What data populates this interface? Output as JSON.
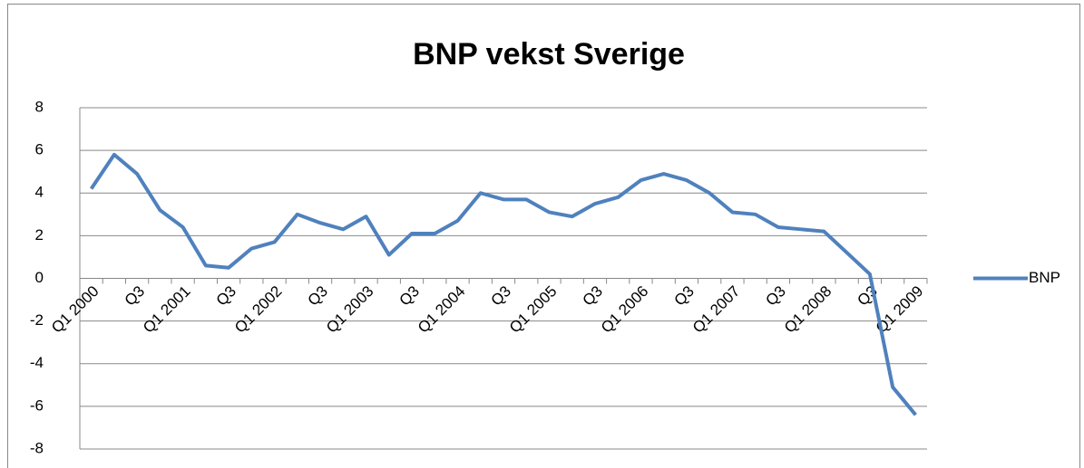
{
  "chart_data": {
    "type": "line",
    "title": "BNP vekst Sverige",
    "categories": [
      "Q1 2000",
      null,
      "Q3",
      null,
      "Q1 2001",
      null,
      "Q3",
      null,
      "Q1 2002",
      null,
      "Q3",
      null,
      "Q1 2003",
      null,
      "Q3",
      null,
      "Q1 2004",
      null,
      "Q3",
      null,
      "Q1 2005",
      null,
      "Q3",
      null,
      "Q1 2006",
      null,
      "Q3",
      null,
      "Q1 2007",
      null,
      "Q3",
      null,
      "Q1 2008",
      null,
      "Q3",
      null,
      "Q1 2009"
    ],
    "series": [
      {
        "name": "BNP",
        "color": "#4f81bd",
        "values": [
          4.2,
          5.8,
          4.9,
          3.2,
          2.4,
          0.6,
          0.5,
          1.4,
          1.7,
          3.0,
          2.6,
          2.3,
          2.9,
          1.1,
          2.1,
          2.1,
          2.7,
          4.0,
          3.7,
          3.7,
          3.1,
          2.9,
          3.5,
          3.8,
          4.6,
          4.9,
          4.6,
          4.0,
          3.1,
          3.0,
          2.4,
          2.3,
          2.2,
          1.2,
          0.2,
          -5.1,
          -6.4
        ]
      }
    ],
    "ylim": [
      -8,
      8
    ],
    "yticks": [
      -8,
      -6,
      -4,
      -2,
      0,
      2,
      4,
      6,
      8
    ],
    "grid": true,
    "legend": "right"
  }
}
